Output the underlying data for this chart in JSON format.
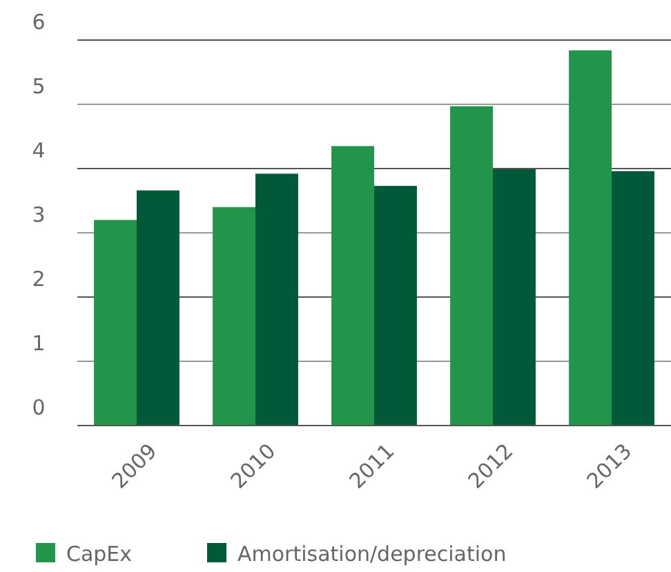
{
  "chart_data": {
    "type": "bar",
    "categories": [
      "2009",
      "2010",
      "2011",
      "2012",
      "2013"
    ],
    "series": [
      {
        "name": "CapEx",
        "color": "#23954a",
        "values": [
          3.2,
          3.4,
          4.35,
          4.97,
          5.84
        ]
      },
      {
        "name": "Amortisation/depreciation",
        "color": "#005a3a",
        "values": [
          3.66,
          3.92,
          3.73,
          3.99,
          3.96
        ]
      }
    ],
    "ylim": [
      0,
      6
    ],
    "yticks": [
      0,
      1,
      2,
      3,
      4,
      5,
      6
    ],
    "grid": "y",
    "legend": "bottom left"
  }
}
